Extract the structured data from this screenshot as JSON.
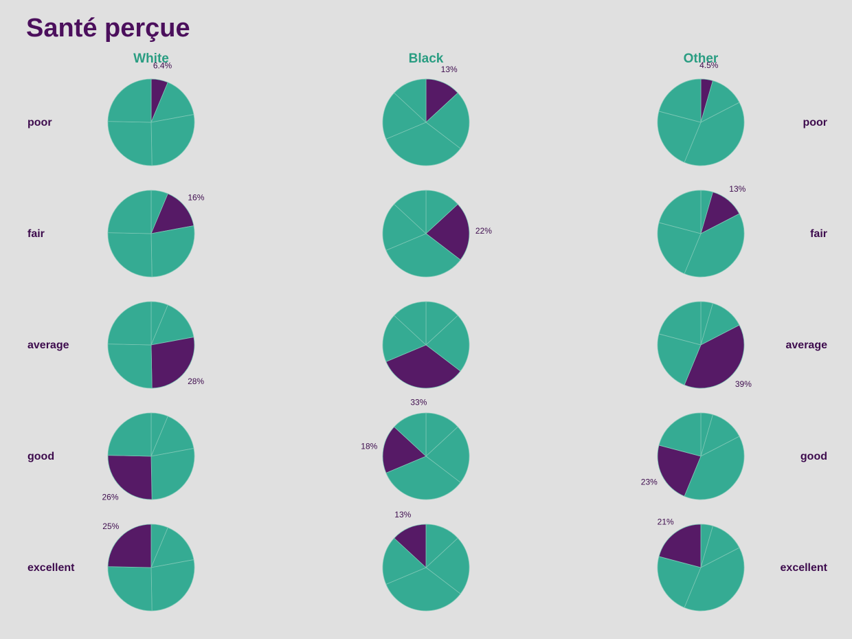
{
  "title": "Santé perçue",
  "colors": {
    "base": "#35ab93",
    "highlight": "#561a66",
    "slice_border": "#7fc8b6"
  },
  "chart_data": {
    "type": "pie",
    "title": "Santé perçue",
    "groups": [
      "White",
      "Black",
      "Other"
    ],
    "categories": [
      "poor",
      "fair",
      "average",
      "good",
      "excellent"
    ],
    "values": {
      "White": [
        6.4,
        16,
        28,
        26,
        25
      ],
      "Black": [
        13,
        22,
        33,
        18,
        13
      ],
      "Other": [
        4.5,
        13,
        39,
        23,
        21
      ]
    },
    "labels": {
      "White": [
        "6.4%",
        "16%",
        "28%",
        "26%",
        "25%"
      ],
      "Black": [
        "13%",
        "22%",
        "33%",
        "18%",
        "13%"
      ],
      "Other": [
        "4.5%",
        "13%",
        "39%",
        "23%",
        "21%"
      ]
    }
  }
}
